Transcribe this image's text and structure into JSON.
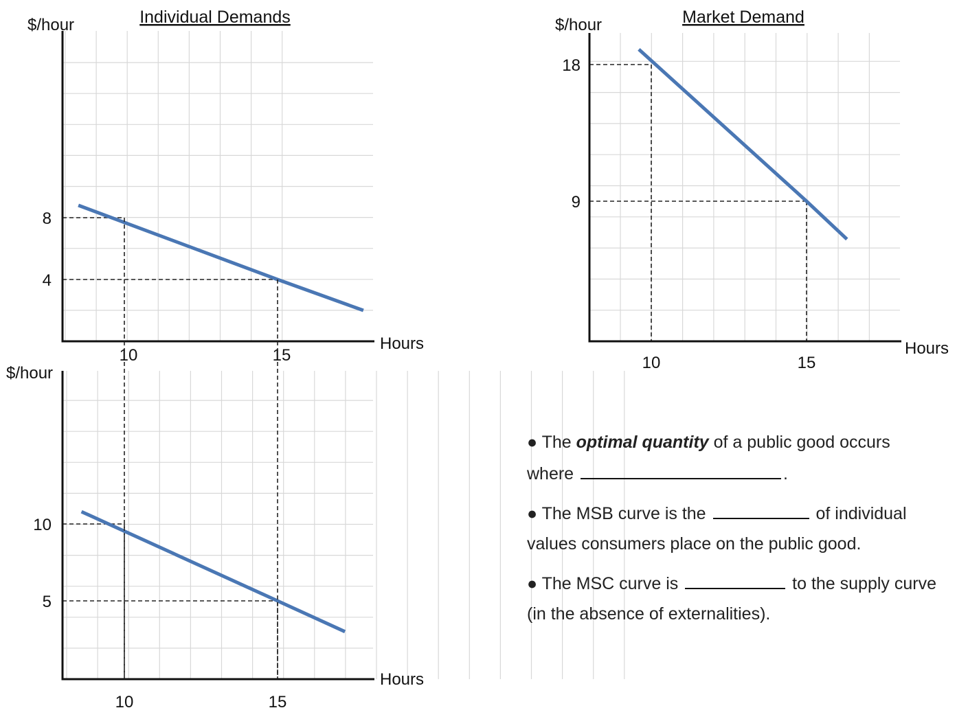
{
  "chart_data": [
    {
      "id": "top-left",
      "type": "line",
      "title": "Individual Demands",
      "ylabel": "$/hour",
      "xlabel": "Hours",
      "x_ticks": [
        10,
        15
      ],
      "y_ticks": [
        8,
        4
      ],
      "grid": true,
      "series": [
        {
          "points": [
            [
              8.5,
              8.8
            ],
            [
              15,
              4
            ],
            [
              17.8,
              2
            ]
          ]
        }
      ],
      "reference_points": [
        [
          10,
          8
        ],
        [
          15,
          4
        ]
      ]
    },
    {
      "id": "bottom-left",
      "type": "line",
      "title": "",
      "ylabel": "$/hour",
      "xlabel": "Hours",
      "x_ticks": [
        10,
        15
      ],
      "y_ticks": [
        10,
        5
      ],
      "grid": true,
      "series": [
        {
          "points": [
            [
              8.6,
              10.8
            ],
            [
              15,
              5
            ],
            [
              17.2,
              3
            ]
          ]
        }
      ],
      "reference_points": [
        [
          10,
          10
        ],
        [
          15,
          5
        ]
      ]
    },
    {
      "id": "market",
      "type": "line",
      "title": "Market Demand",
      "ylabel": "$/hour",
      "xlabel": "Hours",
      "x_ticks": [
        10,
        15
      ],
      "y_ticks": [
        18,
        9
      ],
      "grid": true,
      "series": [
        {
          "points": [
            [
              9.6,
              19
            ],
            [
              15,
              9
            ],
            [
              16.3,
              6.5
            ]
          ]
        }
      ],
      "reference_points": [
        [
          10,
          18
        ],
        [
          15,
          9
        ]
      ]
    }
  ],
  "text": {
    "b1_pre": "● The ",
    "b1_em": "optimal quantity",
    "b1_mid": " of a public good occurs where ",
    "b1_post": ".",
    "b2_pre": "● The MSB curve is the ",
    "b2_post": " of individual values consumers place on the public good.",
    "b3_pre": "● The MSC curve is ",
    "b3_post": " to the supply curve (in the absence of externalities)."
  },
  "colors": {
    "line": "#4a77b4",
    "axis": "#111111",
    "grid": "#d8d8d8",
    "dash": "#222222"
  }
}
